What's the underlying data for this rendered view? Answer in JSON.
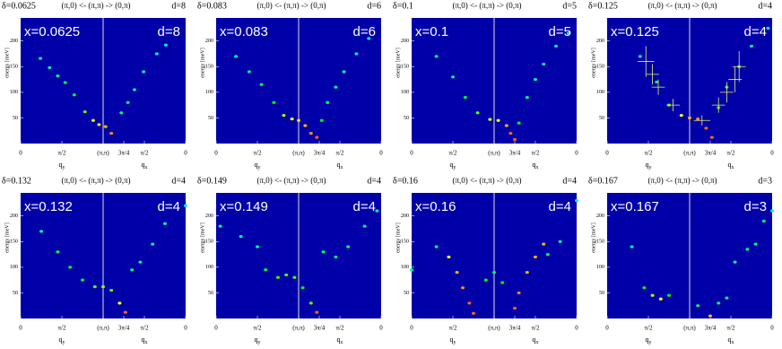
{
  "chart_data": [
    {
      "type": "scatter",
      "title": "δ=0.0625",
      "subtitle": "(π,0) <- (π,π) -> (0,π)",
      "corner_label": "d=8",
      "inset_label": "x=0.0625",
      "inset_right_label": "d=8",
      "ylabel": "energy [meV]",
      "xlabel_left": {
        "base": "q",
        "sub": "y"
      },
      "xlabel_right": {
        "base": "q",
        "sub": "x"
      },
      "background": "#0000a8",
      "divider_color": "#dddddd",
      "xlim": [
        0,
        2
      ],
      "xticks": [
        0,
        {
          "value": 0.5,
          "label": "π/2"
        },
        {
          "value": 1,
          "label": "(π,π)"
        },
        {
          "value": 1.25,
          "label": "3π/4"
        },
        {
          "value": 1.5,
          "label": "π/2"
        },
        {
          "value": 2,
          "label": "0"
        }
      ],
      "ylim": [
        0,
        245
      ],
      "yticks": [
        50,
        100,
        150,
        200
      ],
      "points": [
        [
          0.24,
          166,
          0.3
        ],
        [
          0.35,
          148,
          0.3
        ],
        [
          0.45,
          132,
          0.35
        ],
        [
          0.54,
          119,
          0.4
        ],
        [
          0.65,
          95,
          0.5
        ],
        [
          0.78,
          62,
          0.6
        ],
        [
          0.88,
          45,
          0.75
        ],
        [
          0.95,
          37,
          0.85
        ],
        [
          1.03,
          33,
          0.9
        ],
        [
          1.1,
          20,
          0.95
        ],
        [
          1.22,
          60,
          0.4
        ],
        [
          1.3,
          80,
          0.35
        ],
        [
          1.38,
          105,
          0.3
        ],
        [
          1.49,
          140,
          0.3
        ],
        [
          1.65,
          175,
          0.25
        ],
        [
          1.76,
          192,
          0.2
        ]
      ]
    },
    {
      "type": "scatter",
      "title": "δ=0.083",
      "subtitle": "(π,0) <- (π,π) -> (0,π)",
      "corner_label": "d=6",
      "inset_label": "x=0.083",
      "inset_right_label": "d=6",
      "ylabel": "energy [meV]",
      "xlabel_left": {
        "base": "q",
        "sub": "y"
      },
      "xlabel_right": {
        "base": "q",
        "sub": "x"
      },
      "background": "#0000a8",
      "divider_color": "#dddddd",
      "xlim": [
        0,
        2
      ],
      "xticks": [
        0,
        {
          "value": 0.5,
          "label": "π/2"
        },
        {
          "value": 1,
          "label": "(π,π)"
        },
        {
          "value": 1.25,
          "label": "3π/4"
        },
        {
          "value": 1.5,
          "label": "π/2"
        },
        {
          "value": 2,
          "label": "0"
        }
      ],
      "ylim": [
        0,
        245
      ],
      "yticks": [
        50,
        100,
        150,
        200
      ],
      "points": [
        [
          0.24,
          170,
          0.3
        ],
        [
          0.4,
          140,
          0.35
        ],
        [
          0.55,
          115,
          0.4
        ],
        [
          0.7,
          80,
          0.5
        ],
        [
          0.82,
          55,
          0.7
        ],
        [
          0.92,
          48,
          0.8
        ],
        [
          1.0,
          45,
          0.85
        ],
        [
          1.08,
          35,
          0.9
        ],
        [
          1.15,
          20,
          0.95
        ],
        [
          1.22,
          12,
          1.0
        ],
        [
          1.28,
          45,
          0.5
        ],
        [
          1.35,
          80,
          0.35
        ],
        [
          1.45,
          110,
          0.3
        ],
        [
          1.55,
          140,
          0.3
        ],
        [
          1.7,
          175,
          0.25
        ],
        [
          1.85,
          205,
          0.2
        ]
      ]
    },
    {
      "type": "scatter",
      "title": "δ=0.1",
      "subtitle": "(π,0) <- (π,π) -> (0,π)",
      "corner_label": "d=5",
      "inset_label": "x=0.1",
      "inset_right_label": "d=5",
      "ylabel": "energy [meV]",
      "xlabel_left": {
        "base": "q",
        "sub": "y"
      },
      "xlabel_right": {
        "base": "q",
        "sub": "x"
      },
      "background": "#0000a8",
      "divider_color": "#dddddd",
      "xlim": [
        0,
        2
      ],
      "xticks": [
        0,
        {
          "value": 0.5,
          "label": "π/2"
        },
        {
          "value": 1,
          "label": "(π,π)"
        },
        {
          "value": 1.25,
          "label": "3π/4"
        },
        {
          "value": 1.5,
          "label": "π/2"
        },
        {
          "value": 2,
          "label": "0"
        }
      ],
      "ylim": [
        0,
        245
      ],
      "yticks": [
        50,
        100,
        150,
        200
      ],
      "points": [
        [
          0.3,
          170,
          0.3
        ],
        [
          0.5,
          130,
          0.35
        ],
        [
          0.65,
          90,
          0.45
        ],
        [
          0.8,
          60,
          0.6
        ],
        [
          0.95,
          47,
          0.75
        ],
        [
          1.05,
          45,
          0.8
        ],
        [
          1.15,
          35,
          0.9
        ],
        [
          1.2,
          20,
          1.0
        ],
        [
          1.25,
          8,
          1.0
        ],
        [
          1.3,
          40,
          0.5
        ],
        [
          1.4,
          90,
          0.35
        ],
        [
          1.5,
          125,
          0.3
        ],
        [
          1.6,
          155,
          0.3
        ],
        [
          1.75,
          190,
          0.25
        ],
        [
          1.9,
          215,
          0.2
        ]
      ]
    },
    {
      "type": "scatter",
      "title": "δ=0.125",
      "subtitle": "(π,0) <- (π,π) -> (0,π)",
      "corner_label": "d=4",
      "inset_label": "x=0.125",
      "inset_right_label": "d=4",
      "ylabel": "energy [meV]",
      "xlabel_left": {
        "base": "q",
        "sub": "y"
      },
      "xlabel_right": {
        "base": "q",
        "sub": "x"
      },
      "background": "#0000a8",
      "divider_color": "#dddddd",
      "xlim": [
        0,
        2
      ],
      "xticks": [
        0,
        {
          "value": 0.5,
          "label": "π/2"
        },
        {
          "value": 1,
          "label": "(π,π)"
        },
        {
          "value": 1.25,
          "label": "3π/4"
        },
        {
          "value": 1.5,
          "label": "π/2"
        },
        {
          "value": 2,
          "label": "0"
        }
      ],
      "ylim": [
        0,
        245
      ],
      "yticks": [
        50,
        100,
        150,
        200
      ],
      "points": [
        [
          0.4,
          170,
          0.3
        ],
        [
          0.6,
          120,
          0.4
        ],
        [
          0.75,
          75,
          0.6
        ],
        [
          0.9,
          55,
          0.8
        ],
        [
          1.0,
          50,
          0.9
        ],
        [
          1.1,
          48,
          0.95
        ],
        [
          1.2,
          30,
          1.0
        ],
        [
          1.27,
          12,
          1.0
        ],
        [
          1.35,
          70,
          0.5
        ],
        [
          1.45,
          110,
          0.4
        ],
        [
          1.6,
          150,
          0.35
        ],
        [
          1.75,
          190,
          0.3
        ],
        [
          1.95,
          225,
          0.2
        ]
      ],
      "error_color": "#e8f060",
      "crosses": [
        [
          0.47,
          160,
          0.1,
          30
        ],
        [
          0.55,
          135,
          0.08,
          20
        ],
        [
          0.62,
          110,
          0.08,
          15
        ],
        [
          0.8,
          75,
          0.08,
          12
        ],
        [
          1.15,
          45,
          0.1,
          10
        ],
        [
          1.35,
          75,
          0.08,
          15
        ],
        [
          1.45,
          100,
          0.08,
          20
        ],
        [
          1.55,
          125,
          0.08,
          25
        ],
        [
          1.6,
          150,
          0.08,
          30
        ]
      ]
    },
    {
      "type": "scatter",
      "title": "δ=0.132",
      "subtitle": "(π,0) <- (π,π) -> (0,π)",
      "corner_label": "d=4",
      "inset_label": "x=0.132",
      "inset_right_label": "d=4",
      "ylabel": "energy [meV]",
      "xlabel_left": {
        "base": "q",
        "sub": "y"
      },
      "xlabel_right": {
        "base": "q",
        "sub": "x"
      },
      "background": "#0000a8",
      "divider_color": "#dddddd",
      "xlim": [
        0,
        2
      ],
      "xticks": [
        0,
        {
          "value": 0.5,
          "label": "π/2"
        },
        {
          "value": 1,
          "label": "(π,π)"
        },
        {
          "value": 1.25,
          "label": "3π/4"
        },
        {
          "value": 1.5,
          "label": "π/2"
        },
        {
          "value": 2,
          "label": "0"
        }
      ],
      "ylim": [
        0,
        245
      ],
      "yticks": [
        50,
        100,
        150,
        200
      ],
      "points": [
        [
          0.25,
          170,
          0.3
        ],
        [
          0.45,
          130,
          0.4
        ],
        [
          0.6,
          100,
          0.45
        ],
        [
          0.75,
          75,
          0.5
        ],
        [
          0.9,
          62,
          0.6
        ],
        [
          1.0,
          62,
          0.65
        ],
        [
          1.1,
          55,
          0.6
        ],
        [
          1.2,
          30,
          0.8
        ],
        [
          1.27,
          12,
          1.0
        ],
        [
          1.35,
          95,
          0.4
        ],
        [
          1.45,
          110,
          0.35
        ],
        [
          1.6,
          145,
          0.35
        ],
        [
          1.75,
          185,
          0.3
        ],
        [
          2.0,
          220,
          0.2
        ]
      ]
    },
    {
      "type": "scatter",
      "title": "δ=0.149",
      "subtitle": "(π,0) <- (π,π) -> (0,π)",
      "corner_label": "d=4",
      "inset_label": "x=0.149",
      "inset_right_label": "d=4",
      "ylabel": "energy [meV]",
      "xlabel_left": {
        "base": "q",
        "sub": "y"
      },
      "xlabel_right": {
        "base": "q",
        "sub": "x"
      },
      "background": "#0000a8",
      "divider_color": "#dddddd",
      "xlim": [
        0,
        2
      ],
      "xticks": [
        0,
        {
          "value": 0.5,
          "label": "π/2"
        },
        {
          "value": 1,
          "label": "(π,π)"
        },
        {
          "value": 1.25,
          "label": "3π/4"
        },
        {
          "value": 1.5,
          "label": "π/2"
        },
        {
          "value": 2,
          "label": "0"
        }
      ],
      "ylim": [
        0,
        245
      ],
      "yticks": [
        50,
        100,
        150,
        200
      ],
      "points": [
        [
          0.05,
          180,
          0.3
        ],
        [
          0.3,
          160,
          0.3
        ],
        [
          0.5,
          140,
          0.3
        ],
        [
          0.6,
          95,
          0.45
        ],
        [
          0.75,
          80,
          0.55
        ],
        [
          0.85,
          85,
          0.6
        ],
        [
          0.95,
          80,
          0.6
        ],
        [
          1.05,
          60,
          0.5
        ],
        [
          1.15,
          30,
          0.6
        ],
        [
          1.22,
          12,
          1.0
        ],
        [
          1.3,
          130,
          0.4
        ],
        [
          1.45,
          120,
          0.35
        ],
        [
          1.6,
          140,
          0.35
        ],
        [
          1.8,
          180,
          0.35
        ],
        [
          1.95,
          210,
          0.3
        ]
      ]
    },
    {
      "type": "scatter",
      "title": "δ=0.16",
      "subtitle": "(π,0) <- (π,π) -> (0,π)",
      "corner_label": "d=4",
      "inset_label": "x=0.16",
      "inset_right_label": "d=4",
      "ylabel": "energy [meV]",
      "xlabel_left": {
        "base": "q",
        "sub": "y"
      },
      "xlabel_right": {
        "base": "q",
        "sub": "x"
      },
      "background": "#0000a8",
      "divider_color": "#dddddd",
      "xlim": [
        0,
        2
      ],
      "xticks": [
        0,
        {
          "value": 0.5,
          "label": "π/2"
        },
        {
          "value": 1,
          "label": "(π,π)"
        },
        {
          "value": 1.25,
          "label": "3π/4"
        },
        {
          "value": 1.5,
          "label": "π/2"
        },
        {
          "value": 2,
          "label": "0"
        }
      ],
      "ylim": [
        0,
        245
      ],
      "yticks": [
        50,
        100,
        150,
        200
      ],
      "points": [
        [
          0.0,
          95,
          0.3
        ],
        [
          0.3,
          140,
          0.3
        ],
        [
          0.45,
          120,
          0.8
        ],
        [
          0.55,
          90,
          0.9
        ],
        [
          0.62,
          60,
          0.95
        ],
        [
          0.7,
          30,
          1.0
        ],
        [
          0.75,
          10,
          1.0
        ],
        [
          0.9,
          75,
          0.5
        ],
        [
          1.0,
          90,
          0.4
        ],
        [
          1.1,
          70,
          0.5
        ],
        [
          1.25,
          20,
          1.0
        ],
        [
          1.3,
          50,
          0.95
        ],
        [
          1.4,
          90,
          0.9
        ],
        [
          1.5,
          120,
          0.9
        ],
        [
          1.6,
          145,
          0.9
        ],
        [
          1.65,
          125,
          0.4
        ],
        [
          1.8,
          150,
          0.3
        ],
        [
          2.0,
          230,
          0.2
        ]
      ]
    },
    {
      "type": "scatter",
      "title": "δ=0.167",
      "subtitle": "(π,0) <- (π,π) -> (0,π)",
      "corner_label": "d=3",
      "inset_label": "x=0.167",
      "inset_right_label": "d=3",
      "ylabel": "energy [meV]",
      "xlabel_left": {
        "base": "q",
        "sub": "y"
      },
      "xlabel_right": {
        "base": "q",
        "sub": "x"
      },
      "background": "#0000a8",
      "divider_color": "#dddddd",
      "xlim": [
        0,
        2
      ],
      "xticks": [
        0,
        {
          "value": 0.5,
          "label": "π/2"
        },
        {
          "value": 1,
          "label": "(π,π)"
        },
        {
          "value": 1.25,
          "label": "3π/4"
        },
        {
          "value": 1.5,
          "label": "π/2"
        },
        {
          "value": 2,
          "label": "0"
        }
      ],
      "ylim": [
        0,
        245
      ],
      "yticks": [
        50,
        100,
        150,
        200
      ],
      "points": [
        [
          0.3,
          140,
          0.25
        ],
        [
          0.45,
          60,
          0.5
        ],
        [
          0.55,
          45,
          0.7
        ],
        [
          0.65,
          38,
          0.8
        ],
        [
          0.75,
          45,
          0.5
        ],
        [
          1.1,
          25,
          0.4
        ],
        [
          1.25,
          5,
          0.9
        ],
        [
          1.35,
          30,
          0.4
        ],
        [
          1.45,
          40,
          0.3
        ],
        [
          1.55,
          110,
          0.3
        ],
        [
          1.7,
          135,
          0.35
        ],
        [
          1.8,
          145,
          0.35
        ],
        [
          1.9,
          190,
          0.35
        ],
        [
          2.0,
          210,
          0.3
        ]
      ]
    }
  ]
}
